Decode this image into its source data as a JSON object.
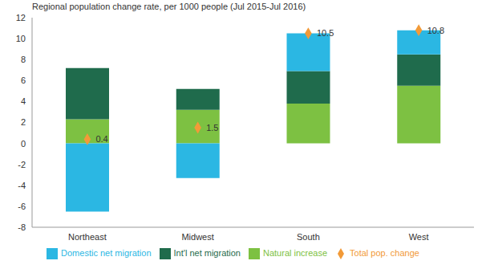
{
  "chart_data": {
    "type": "bar",
    "stacked": true,
    "title": "Regional population change rate, per 1000 people (Jul 2015-Jul 2016)",
    "categories": [
      "Northeast",
      "Midwest",
      "South",
      "West"
    ],
    "series": [
      {
        "name": "Natural increase",
        "color": "#7dc142",
        "values": [
          2.3,
          3.2,
          3.8,
          5.5
        ]
      },
      {
        "name": "Int'l net migration",
        "color": "#1f6b4c",
        "values": [
          4.9,
          2.0,
          3.1,
          3.0
        ]
      },
      {
        "name": "Domestic net migration",
        "color": "#2bb7e3",
        "values": [
          -6.5,
          -3.3,
          3.6,
          2.3
        ]
      },
      {
        "name": "Total pop. change",
        "type": "scatter",
        "marker": "diamond",
        "color": "#f29a38",
        "values": [
          0.4,
          1.5,
          10.5,
          10.8
        ],
        "data_labels": true
      }
    ],
    "ylim": [
      -8,
      12
    ],
    "yticks": [
      -8,
      -6,
      -4,
      -2,
      0,
      2,
      4,
      6,
      8,
      10,
      12
    ],
    "grid": false,
    "legend": "bottom"
  }
}
